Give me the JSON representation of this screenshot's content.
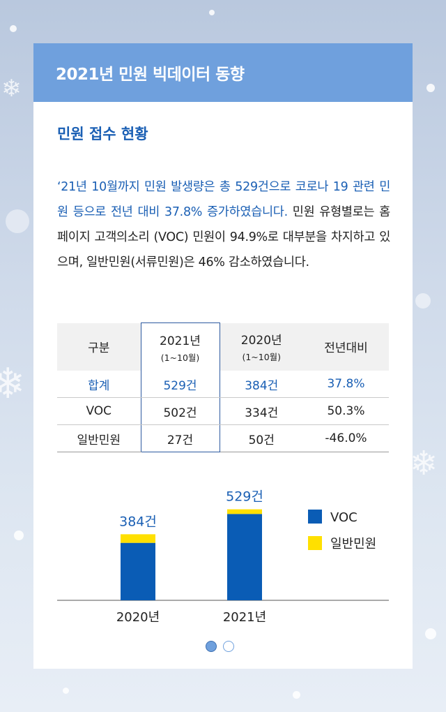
{
  "header": {
    "title": "2021년 민원 빅데이터 동향"
  },
  "section": {
    "title": "민원 접수 현황"
  },
  "summary": {
    "highlight": "‘21년 10월까지 민원 발생량은 총 529건으로 코로나 19 관련 민원 등으로 전년 대비 37.8% 증가하였습니다.",
    "body": " 민원 유형별로는 홈페이지 고객의소리 (VOC) 민원이 94.9%로 대부분을 차지하고 있으며, 일반민원(서류민원)은 46% 감소하였습니다."
  },
  "table": {
    "headers": [
      {
        "main": "구분",
        "sub": ""
      },
      {
        "main": "2021년",
        "sub": "(1~10월)"
      },
      {
        "main": "2020년",
        "sub": "(1~10월)"
      },
      {
        "main": "전년대비",
        "sub": ""
      }
    ],
    "rows": [
      [
        "합계",
        "529건",
        "384건",
        "37.8%"
      ],
      [
        "VOC",
        "502건",
        "334건",
        "50.3%"
      ],
      [
        "일반민원",
        "27건",
        "50건",
        "-46.0%"
      ]
    ]
  },
  "chart_data": {
    "type": "bar",
    "stacked": true,
    "categories": [
      "2020년",
      "2021년"
    ],
    "series": [
      {
        "name": "VOC",
        "values": [
          334,
          502
        ],
        "color": "#0a5cb5"
      },
      {
        "name": "일반민원",
        "values": [
          50,
          27
        ],
        "color": "#ffe000"
      }
    ],
    "total_labels": [
      "384건",
      "529건"
    ],
    "legend_position": "right",
    "ylim": [
      0,
      560
    ],
    "grid": false
  },
  "pagination": {
    "current": 1,
    "total": 2
  },
  "colors": {
    "header_bg": "#6fa0dd",
    "accent": "#1a5fb4",
    "voc": "#0a5cb5",
    "general": "#ffe000"
  }
}
